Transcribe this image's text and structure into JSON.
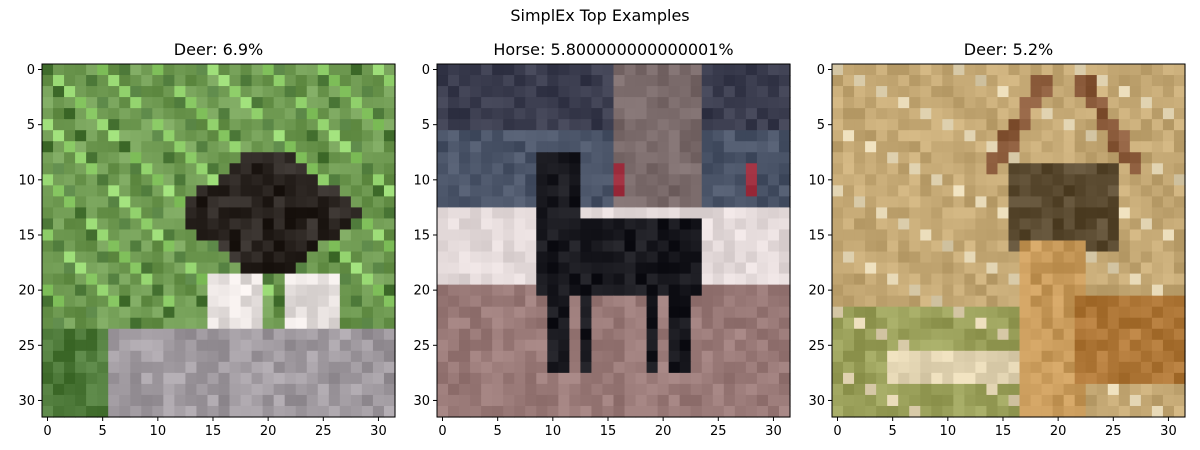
{
  "figure": {
    "title": "SimplEx Top Examples"
  },
  "chart_data": [
    {
      "type": "image",
      "title": "Deer: 6.9%",
      "xlim": [
        -0.5,
        31.5
      ],
      "ylim": [
        31.5,
        -0.5
      ],
      "xticks": [
        0,
        5,
        10,
        15,
        20,
        25,
        30
      ],
      "yticks": [
        0,
        5,
        10,
        15,
        20,
        25,
        30
      ],
      "scene": "grass-bird",
      "palette": {
        "bg": "#6f9a52",
        "grass_light": "#8fcf6a",
        "grass_dark": "#4e7a3a",
        "dark": "#2a2420",
        "white": "#e8e2e0",
        "ground": "#a09aa0"
      }
    },
    {
      "type": "image",
      "title": "Horse: 5.800000000000001%",
      "xlim": [
        -0.5,
        31.5
      ],
      "ylim": [
        31.5,
        -0.5
      ],
      "xticks": [
        0,
        5,
        10,
        15,
        20,
        25,
        30
      ],
      "yticks": [
        0,
        5,
        10,
        15,
        20,
        25,
        30
      ],
      "scene": "horse-arena",
      "palette": {
        "top": "#3a3c4e",
        "crowd": "#4a5468",
        "fence": "#e4dada",
        "horse": "#18181e",
        "ground": "#9a7a78",
        "red": "#a03040"
      }
    },
    {
      "type": "image",
      "title": "Deer: 5.2%",
      "xlim": [
        -0.5,
        31.5
      ],
      "ylim": [
        31.5,
        -0.5
      ],
      "xticks": [
        0,
        5,
        10,
        15,
        20,
        25,
        30
      ],
      "yticks": [
        0,
        5,
        10,
        15,
        20,
        25,
        30
      ],
      "scene": "deer-field",
      "palette": {
        "bg": "#c4a874",
        "grass": "#9aa05a",
        "antler": "#8a5a3a",
        "body": "#c89a5a",
        "dark": "#5a4a30",
        "light": "#e0d2b0"
      }
    }
  ]
}
